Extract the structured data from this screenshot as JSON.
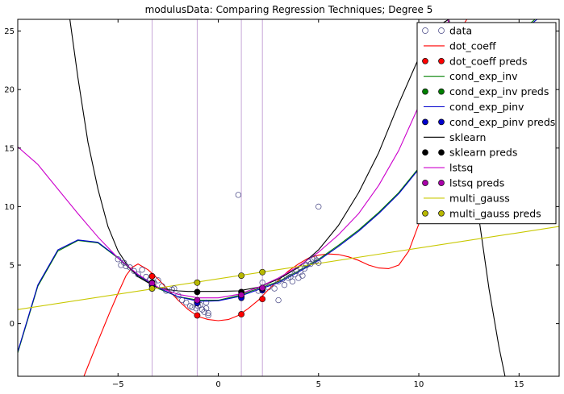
{
  "chart_data": {
    "type": "line",
    "title": "modulusData: Comparing Regression Techniques; Degree 5",
    "xlabel": "",
    "ylabel": "",
    "xlim": [
      -10,
      17
    ],
    "ylim": [
      -4.5,
      26
    ],
    "x_ticks": [
      -5,
      0,
      5,
      10,
      15
    ],
    "y_ticks": [
      0,
      5,
      10,
      15,
      20,
      25
    ],
    "grid": false,
    "legend_position": "top-right",
    "vertical_lines": [
      -3.3,
      -1.05,
      1.15,
      2.2
    ],
    "vertical_line_color": "#c8a8d8",
    "data_points": {
      "x": [
        -5.0,
        -4.85,
        -4.7,
        -4.6,
        -4.4,
        -4.2,
        -4.0,
        -3.8,
        -3.6,
        -3.4,
        -3.2,
        -3.0,
        -2.8,
        -2.6,
        -2.3,
        -2.2,
        -2.0,
        -1.8,
        -1.6,
        -1.4,
        -1.3,
        -1.1,
        -1.0,
        -0.9,
        -0.8,
        -0.7,
        -0.6,
        -0.6,
        -0.5,
        -0.5,
        1.0,
        2.0,
        2.2,
        2.5,
        2.8,
        3.0,
        3.0,
        3.2,
        3.3,
        3.5,
        3.6,
        3.7,
        3.8,
        3.9,
        4.0,
        4.1,
        4.2,
        4.3,
        4.4,
        4.5,
        4.6,
        4.7,
        4.8,
        4.9,
        5.0,
        5.0
      ],
      "y": [
        5.5,
        5.0,
        5.2,
        4.9,
        4.8,
        4.5,
        4.2,
        4.6,
        4.0,
        3.8,
        3.5,
        3.7,
        3.2,
        2.8,
        2.9,
        3.0,
        2.4,
        2.0,
        1.8,
        1.5,
        1.4,
        1.3,
        1.5,
        1.6,
        1.2,
        1.0,
        1.3,
        1.8,
        0.7,
        0.9,
        11.0,
        2.8,
        3.5,
        3.1,
        3.0,
        2.0,
        3.6,
        3.8,
        3.3,
        3.9,
        4.0,
        3.6,
        4.2,
        4.5,
        3.9,
        4.4,
        4.1,
        4.7,
        5.0,
        5.3,
        5.1,
        5.5,
        5.6,
        5.4,
        5.2,
        10.0
      ]
    },
    "pred_x": [
      -3.3,
      -1.05,
      1.15,
      2.2
    ],
    "series": [
      {
        "name": "data",
        "kind": "marker",
        "color": "#c0c0f0",
        "x": [],
        "y": []
      },
      {
        "name": "dot_coeff",
        "kind": "line",
        "color": "#ff0000",
        "x": [
          -6.7,
          -6.0,
          -5.4,
          -5.0,
          -4.6,
          -4.3,
          -4.0,
          -3.5,
          -3.0,
          -2.5,
          -2.0,
          -1.5,
          -1.0,
          -0.5,
          0.0,
          0.5,
          1.0,
          1.5,
          2.0,
          2.5,
          3.0,
          3.5,
          4.0,
          4.5,
          5.0,
          5.5,
          6.0,
          6.5,
          7.0,
          7.5,
          8.0,
          8.5,
          9.0,
          9.5,
          10.0,
          10.5,
          11.0,
          11.5,
          12.0,
          12.4
        ],
        "y": [
          -4.5,
          -1.5,
          1.0,
          2.6,
          4.1,
          4.8,
          5.1,
          4.6,
          3.8,
          2.9,
          2.0,
          1.2,
          0.6,
          0.35,
          0.25,
          0.35,
          0.7,
          1.3,
          2.0,
          2.9,
          3.7,
          4.5,
          5.1,
          5.6,
          5.85,
          5.95,
          5.9,
          5.7,
          5.4,
          5.0,
          4.75,
          4.7,
          5.0,
          6.2,
          8.5,
          12.5,
          17.5,
          22.0,
          25.0,
          26.0
        ]
      },
      {
        "name": "dot_coeff preds",
        "kind": "marker",
        "color": "#ff0000",
        "x": [
          -3.3,
          -1.05,
          1.15,
          2.2
        ],
        "y": [
          4.05,
          0.7,
          0.8,
          2.1
        ]
      },
      {
        "name": "cond_exp_inv",
        "kind": "line",
        "color": "#008000",
        "x": [
          -10,
          -9,
          -8,
          -7,
          -6,
          -5,
          -4,
          -3,
          -2,
          -1,
          0,
          1,
          2,
          3,
          4,
          5,
          6,
          7,
          8,
          9,
          10,
          11,
          12,
          13,
          14,
          15,
          15.8
        ],
        "y": [
          -2.5,
          3.2,
          6.2,
          7.1,
          6.9,
          5.6,
          4.1,
          3.0,
          2.3,
          2.0,
          2.0,
          2.4,
          3.0,
          3.6,
          4.5,
          5.5,
          6.7,
          8.0,
          9.5,
          11.2,
          13.3,
          15.6,
          18.0,
          20.6,
          22.9,
          24.9,
          26.0
        ]
      },
      {
        "name": "cond_exp_inv preds",
        "kind": "marker",
        "color": "#008000",
        "x": [
          -3.3,
          -1.05,
          1.15,
          2.2
        ],
        "y": [
          3.3,
          1.8,
          2.3,
          2.9
        ]
      },
      {
        "name": "cond_exp_pinv",
        "kind": "line",
        "color": "#0000cc",
        "x": [
          -10,
          -9,
          -8,
          -7,
          -6,
          -5,
          -4,
          -3,
          -2,
          -1,
          0,
          1,
          2,
          3,
          4,
          5,
          6,
          7,
          8,
          9,
          10,
          11,
          12,
          13,
          14,
          15,
          15.9
        ],
        "y": [
          -2.4,
          3.3,
          6.3,
          7.15,
          6.95,
          5.65,
          4.15,
          3.05,
          2.3,
          1.9,
          1.95,
          2.3,
          2.9,
          3.5,
          4.4,
          5.4,
          6.6,
          7.9,
          9.4,
          11.1,
          13.2,
          15.5,
          17.9,
          20.5,
          22.8,
          24.8,
          26.0
        ]
      },
      {
        "name": "cond_exp_pinv preds",
        "kind": "marker",
        "color": "#0000cc",
        "x": [
          -3.3,
          -1.05,
          1.15,
          2.2
        ],
        "y": [
          3.25,
          1.75,
          2.2,
          2.85
        ]
      },
      {
        "name": "sklearn",
        "kind": "line",
        "color": "#000000",
        "x": [
          -7.4,
          -7.0,
          -6.5,
          -6.0,
          -5.5,
          -5.0,
          -4.5,
          -4.0,
          -3.5,
          -3.0,
          -2.5,
          -2.0,
          -1.5,
          -1.0,
          0.0,
          1.0,
          2.0,
          3.0,
          4.0,
          5.0,
          6.0,
          7.0,
          8.0,
          9.0,
          10.0,
          11.0,
          11.5,
          12.0,
          12.5,
          13.0,
          13.5,
          14.0,
          14.3
        ],
        "y": [
          26.0,
          21.0,
          15.5,
          11.5,
          8.3,
          6.2,
          4.9,
          4.0,
          3.5,
          3.1,
          2.9,
          2.8,
          2.75,
          2.75,
          2.75,
          2.8,
          3.1,
          3.8,
          4.8,
          6.3,
          8.4,
          11.2,
          14.6,
          18.8,
          22.7,
          25.5,
          26.0,
          22.0,
          16.0,
          9.0,
          3.0,
          -2.0,
          -4.5
        ]
      },
      {
        "name": "sklearn preds",
        "kind": "marker",
        "color": "#000000",
        "x": [
          -3.3,
          -1.05,
          1.15,
          2.2
        ],
        "y": [
          3.5,
          2.7,
          2.7,
          3.0
        ]
      },
      {
        "name": "lstsq",
        "kind": "line",
        "color": "#cc00cc",
        "x": [
          -10,
          -9,
          -8,
          -7,
          -6,
          -5,
          -4,
          -3,
          -2,
          -1,
          0,
          1,
          2,
          3,
          4,
          5,
          6,
          7,
          8,
          9,
          10,
          11,
          11.5
        ],
        "y": [
          15.1,
          13.6,
          11.5,
          9.4,
          7.4,
          5.6,
          4.2,
          3.1,
          2.5,
          2.2,
          2.2,
          2.5,
          3.1,
          3.9,
          4.9,
          6.1,
          7.6,
          9.4,
          11.8,
          14.8,
          18.6,
          23.2,
          26.0
        ]
      },
      {
        "name": "lstsq preds",
        "kind": "marker",
        "color": "#aa00aa",
        "x": [
          -3.3,
          -1.05,
          1.15,
          2.2
        ],
        "y": [
          3.45,
          2.0,
          2.45,
          3.05
        ]
      },
      {
        "name": "multi_gauss",
        "kind": "line",
        "color": "#c8c800",
        "x": [
          -10,
          17
        ],
        "y": [
          1.2,
          8.3
        ]
      },
      {
        "name": "multi_gauss preds",
        "kind": "marker",
        "color": "#b8b800",
        "x": [
          -3.3,
          -1.05,
          1.15,
          2.2
        ],
        "y": [
          3.0,
          3.5,
          4.1,
          4.4
        ]
      }
    ]
  }
}
